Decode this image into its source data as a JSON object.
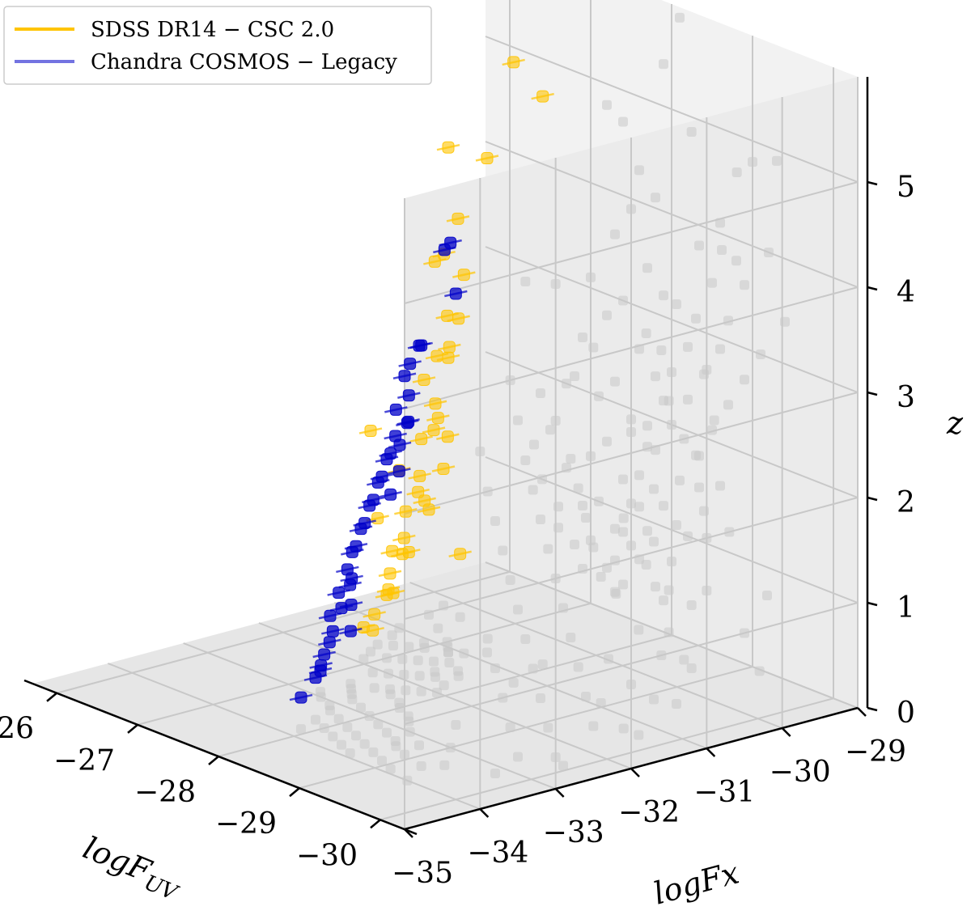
{
  "chart_data": {
    "type": "scatter",
    "dimensions": 3,
    "xlabel": "logF",
    "xlabel_sub": "UV",
    "ylabel": "logFx",
    "zlabel": "z",
    "x_ticks": [
      "−30",
      "−29",
      "−28",
      "−27",
      "−26"
    ],
    "x_tick_values": [
      -30,
      -29,
      -28,
      -27,
      -26
    ],
    "y_ticks": [
      "−35",
      "−34",
      "−33",
      "−32",
      "−31",
      "−30",
      "−29"
    ],
    "y_tick_values": [
      -35,
      -34,
      -33,
      -32,
      -31,
      -30,
      -29
    ],
    "z_ticks": [
      "0",
      "1",
      "2",
      "3",
      "4",
      "5"
    ],
    "z_tick_values": [
      0,
      1,
      2,
      3,
      4,
      5
    ],
    "xlim": [
      -30.3,
      -25.7
    ],
    "ylim": [
      -35,
      -29
    ],
    "zlim": [
      0,
      6
    ],
    "legend": {
      "placement": "top-left",
      "entries": [
        {
          "label": "SDSS DR14 − CSC 2.0",
          "color": "#ffc400"
        },
        {
          "label": "Chandra COSMOS − Legacy",
          "color": "#0000c8"
        }
      ]
    },
    "projection_color": "#c8c8c8",
    "series": [
      {
        "name": "SDSS DR14 − CSC 2.0",
        "color": "#ffc400",
        "points": [
          [
            -28.1,
            -31.2,
            5.9
          ],
          [
            -27.9,
            -30.6,
            5.4
          ],
          [
            -27.2,
            -31.1,
            4.8
          ],
          [
            -27.4,
            -30.8,
            4.7
          ],
          [
            -27.6,
            -31.4,
            4.3
          ],
          [
            -27.8,
            -31.8,
            4.1
          ],
          [
            -27.5,
            -31.6,
            3.9
          ],
          [
            -27.3,
            -31.0,
            3.6
          ],
          [
            -27.7,
            -31.5,
            3.4
          ],
          [
            -27.9,
            -32.0,
            3.2
          ],
          [
            -27.4,
            -31.3,
            3.0
          ],
          [
            -27.2,
            -31.1,
            2.8
          ],
          [
            -27.6,
            -31.7,
            2.6
          ],
          [
            -27.8,
            -32.1,
            2.4
          ],
          [
            -27.3,
            -31.4,
            2.2
          ],
          [
            -27.1,
            -31.0,
            2.0
          ],
          [
            -27.5,
            -31.8,
            1.9
          ],
          [
            -27.7,
            -32.2,
            1.7
          ],
          [
            -27.2,
            -31.5,
            1.6
          ],
          [
            -27.0,
            -31.2,
            1.4
          ],
          [
            -27.4,
            -31.9,
            1.3
          ],
          [
            -27.6,
            -32.3,
            1.1
          ],
          [
            -27.1,
            -31.6,
            1.0
          ],
          [
            -26.9,
            -31.3,
            0.9
          ],
          [
            -27.3,
            -32.0,
            0.8
          ],
          [
            -27.5,
            -32.4,
            0.7
          ],
          [
            -27.0,
            -31.7,
            0.6
          ],
          [
            -26.8,
            -31.4,
            0.5
          ],
          [
            -27.2,
            -32.1,
            0.4
          ],
          [
            -26.9,
            -31.9,
            0.3
          ],
          [
            -26.7,
            -31.5,
            1.2
          ],
          [
            -26.8,
            -31.7,
            2.1
          ],
          [
            -26.6,
            -31.2,
            0.8
          ],
          [
            -26.5,
            -31.0,
            1.5
          ],
          [
            -26.9,
            -31.1,
            2.5
          ],
          [
            -27.0,
            -30.9,
            3.1
          ],
          [
            -26.7,
            -30.7,
            2.0
          ],
          [
            -26.4,
            -30.5,
            1.0
          ],
          [
            -26.6,
            -30.3,
            0.6
          ],
          [
            -26.3,
            -30.2,
            1.3
          ]
        ]
      },
      {
        "name": "Chandra COSMOS − Legacy",
        "color": "#0000c8",
        "points": [
          [
            -29.3,
            -33.4,
            4.9
          ],
          [
            -29.0,
            -33.0,
            4.8
          ],
          [
            -28.6,
            -32.5,
            4.1
          ],
          [
            -29.2,
            -33.6,
            4.0
          ],
          [
            -28.8,
            -33.2,
            3.8
          ],
          [
            -28.9,
            -33.5,
            3.6
          ],
          [
            -28.5,
            -33.0,
            3.5
          ],
          [
            -29.4,
            -34.0,
            3.4
          ],
          [
            -28.7,
            -33.4,
            3.2
          ],
          [
            -28.3,
            -32.8,
            3.1
          ],
          [
            -29.1,
            -33.9,
            3.0
          ],
          [
            -28.6,
            -33.3,
            2.9
          ],
          [
            -28.2,
            -32.7,
            2.8
          ],
          [
            -28.9,
            -33.8,
            2.7
          ],
          [
            -28.4,
            -33.2,
            2.6
          ],
          [
            -28.0,
            -32.6,
            2.5
          ],
          [
            -28.7,
            -33.7,
            2.4
          ],
          [
            -28.2,
            -33.1,
            2.3
          ],
          [
            -27.9,
            -32.5,
            2.2
          ],
          [
            -28.5,
            -33.6,
            2.1
          ],
          [
            -28.0,
            -33.0,
            2.0
          ],
          [
            -27.7,
            -32.4,
            1.9
          ],
          [
            -28.3,
            -33.5,
            1.8
          ],
          [
            -27.8,
            -32.9,
            1.7
          ],
          [
            -28.6,
            -33.9,
            1.6
          ],
          [
            -28.1,
            -33.4,
            1.5
          ],
          [
            -27.6,
            -32.8,
            1.4
          ],
          [
            -28.4,
            -33.8,
            1.3
          ],
          [
            -27.9,
            -33.3,
            1.2
          ],
          [
            -27.5,
            -32.7,
            1.1
          ],
          [
            -28.2,
            -33.7,
            1.0
          ],
          [
            -27.7,
            -33.2,
            0.9
          ],
          [
            -27.4,
            -32.6,
            0.8
          ],
          [
            -28.0,
            -33.6,
            0.7
          ],
          [
            -27.6,
            -33.1,
            0.6
          ],
          [
            -27.3,
            -32.5,
            0.5
          ],
          [
            -27.8,
            -33.5,
            0.4
          ],
          [
            -27.4,
            -33.0,
            0.3
          ],
          [
            -27.9,
            -33.8,
            0.3
          ],
          [
            -27.3,
            -32.9,
            0.2
          ]
        ]
      }
    ]
  }
}
